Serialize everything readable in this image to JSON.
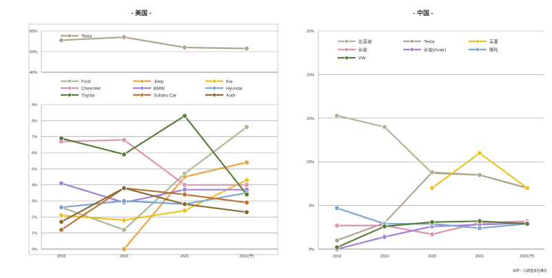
{
  "source": "出所：CI調査会社推計",
  "chart_data": [
    {
      "type": "line",
      "title": "- 美国 -",
      "part": "top",
      "ytick_labels": [
        "60%",
        "50%",
        "40%"
      ],
      "ylim": [
        40,
        60
      ],
      "categories": [
        "2018",
        "2019",
        "2021",
        "2022(予)"
      ],
      "series": [
        {
          "name": "Tesla",
          "color": "#b0a48c",
          "values": [
            55.5,
            57,
            52,
            51.5
          ]
        }
      ]
    },
    {
      "type": "line",
      "title": "- 美国 -",
      "part": "bottom",
      "ytick_labels": [
        "9%",
        "8%",
        "7%",
        "6%",
        "5%",
        "4%",
        "3%",
        "2%",
        "1%",
        "0%"
      ],
      "ylim": [
        0,
        9
      ],
      "categories": [
        "2018",
        "2019",
        "2021",
        "2022(予)"
      ],
      "series": [
        {
          "name": "Ford",
          "color": "#a8b890",
          "values": [
            2.6,
            1.2,
            4.7,
            7.6
          ]
        },
        {
          "name": "Jeep",
          "color": "#f0a040",
          "values": [
            null,
            0,
            4.5,
            5.4
          ]
        },
        {
          "name": "Kia",
          "color": "#f0c020",
          "values": [
            2.1,
            1.8,
            2.4,
            4.3
          ]
        },
        {
          "name": "Chevrolet",
          "color": "#e090b0",
          "values": [
            6.7,
            6.8,
            4.0,
            4.0
          ]
        },
        {
          "name": "BMW",
          "color": "#a080d8",
          "values": [
            4.1,
            2.9,
            3.7,
            3.7
          ]
        },
        {
          "name": "Hyundai",
          "color": "#7aa4d4",
          "values": [
            2.6,
            3.0,
            2.8,
            3.5
          ]
        },
        {
          "name": "Toyota",
          "color": "#5a7a3a",
          "values": [
            6.9,
            5.9,
            8.3,
            3.4
          ]
        },
        {
          "name": "Subaru Car",
          "color": "#c07030",
          "values": [
            1.2,
            3.8,
            3.4,
            2.9
          ]
        },
        {
          "name": "Audi",
          "color": "#8a6a30",
          "values": [
            1.7,
            3.8,
            2.8,
            2.3
          ]
        }
      ]
    },
    {
      "type": "line",
      "title": "- 中国 -",
      "ytick_labels": [
        "25%",
        "20%",
        "15%",
        "10%",
        "5%",
        "0%"
      ],
      "ylim": [
        0,
        25
      ],
      "categories": [
        "2018",
        "2019",
        "2020",
        "2021",
        "2022(予)"
      ],
      "series": [
        {
          "name": "比亚迪",
          "color": "#a8b890",
          "values": [
            15.3,
            14,
            8.7,
            8.5,
            7
          ]
        },
        {
          "name": "Tesla",
          "color": "#b0a48c",
          "values": [
            1,
            3,
            8.8,
            8.5,
            7
          ]
        },
        {
          "name": "五菱",
          "color": "#f0c020",
          "values": [
            null,
            null,
            7,
            11,
            7
          ]
        },
        {
          "name": "长安",
          "color": "#e090b0",
          "values": [
            2.7,
            2.7,
            1.7,
            3,
            3.2
          ]
        },
        {
          "name": "长安(Avatr)",
          "color": "#a080d8",
          "values": [
            0,
            1.4,
            2.6,
            2.8,
            3
          ]
        },
        {
          "name": "哪吒",
          "color": "#7aa4d4",
          "values": [
            4.7,
            2.9,
            2.9,
            2.4,
            2.9
          ]
        },
        {
          "name": "VW",
          "color": "#5a7a3a",
          "values": [
            0.2,
            2.6,
            3.1,
            3.2,
            2.9
          ]
        }
      ]
    }
  ]
}
